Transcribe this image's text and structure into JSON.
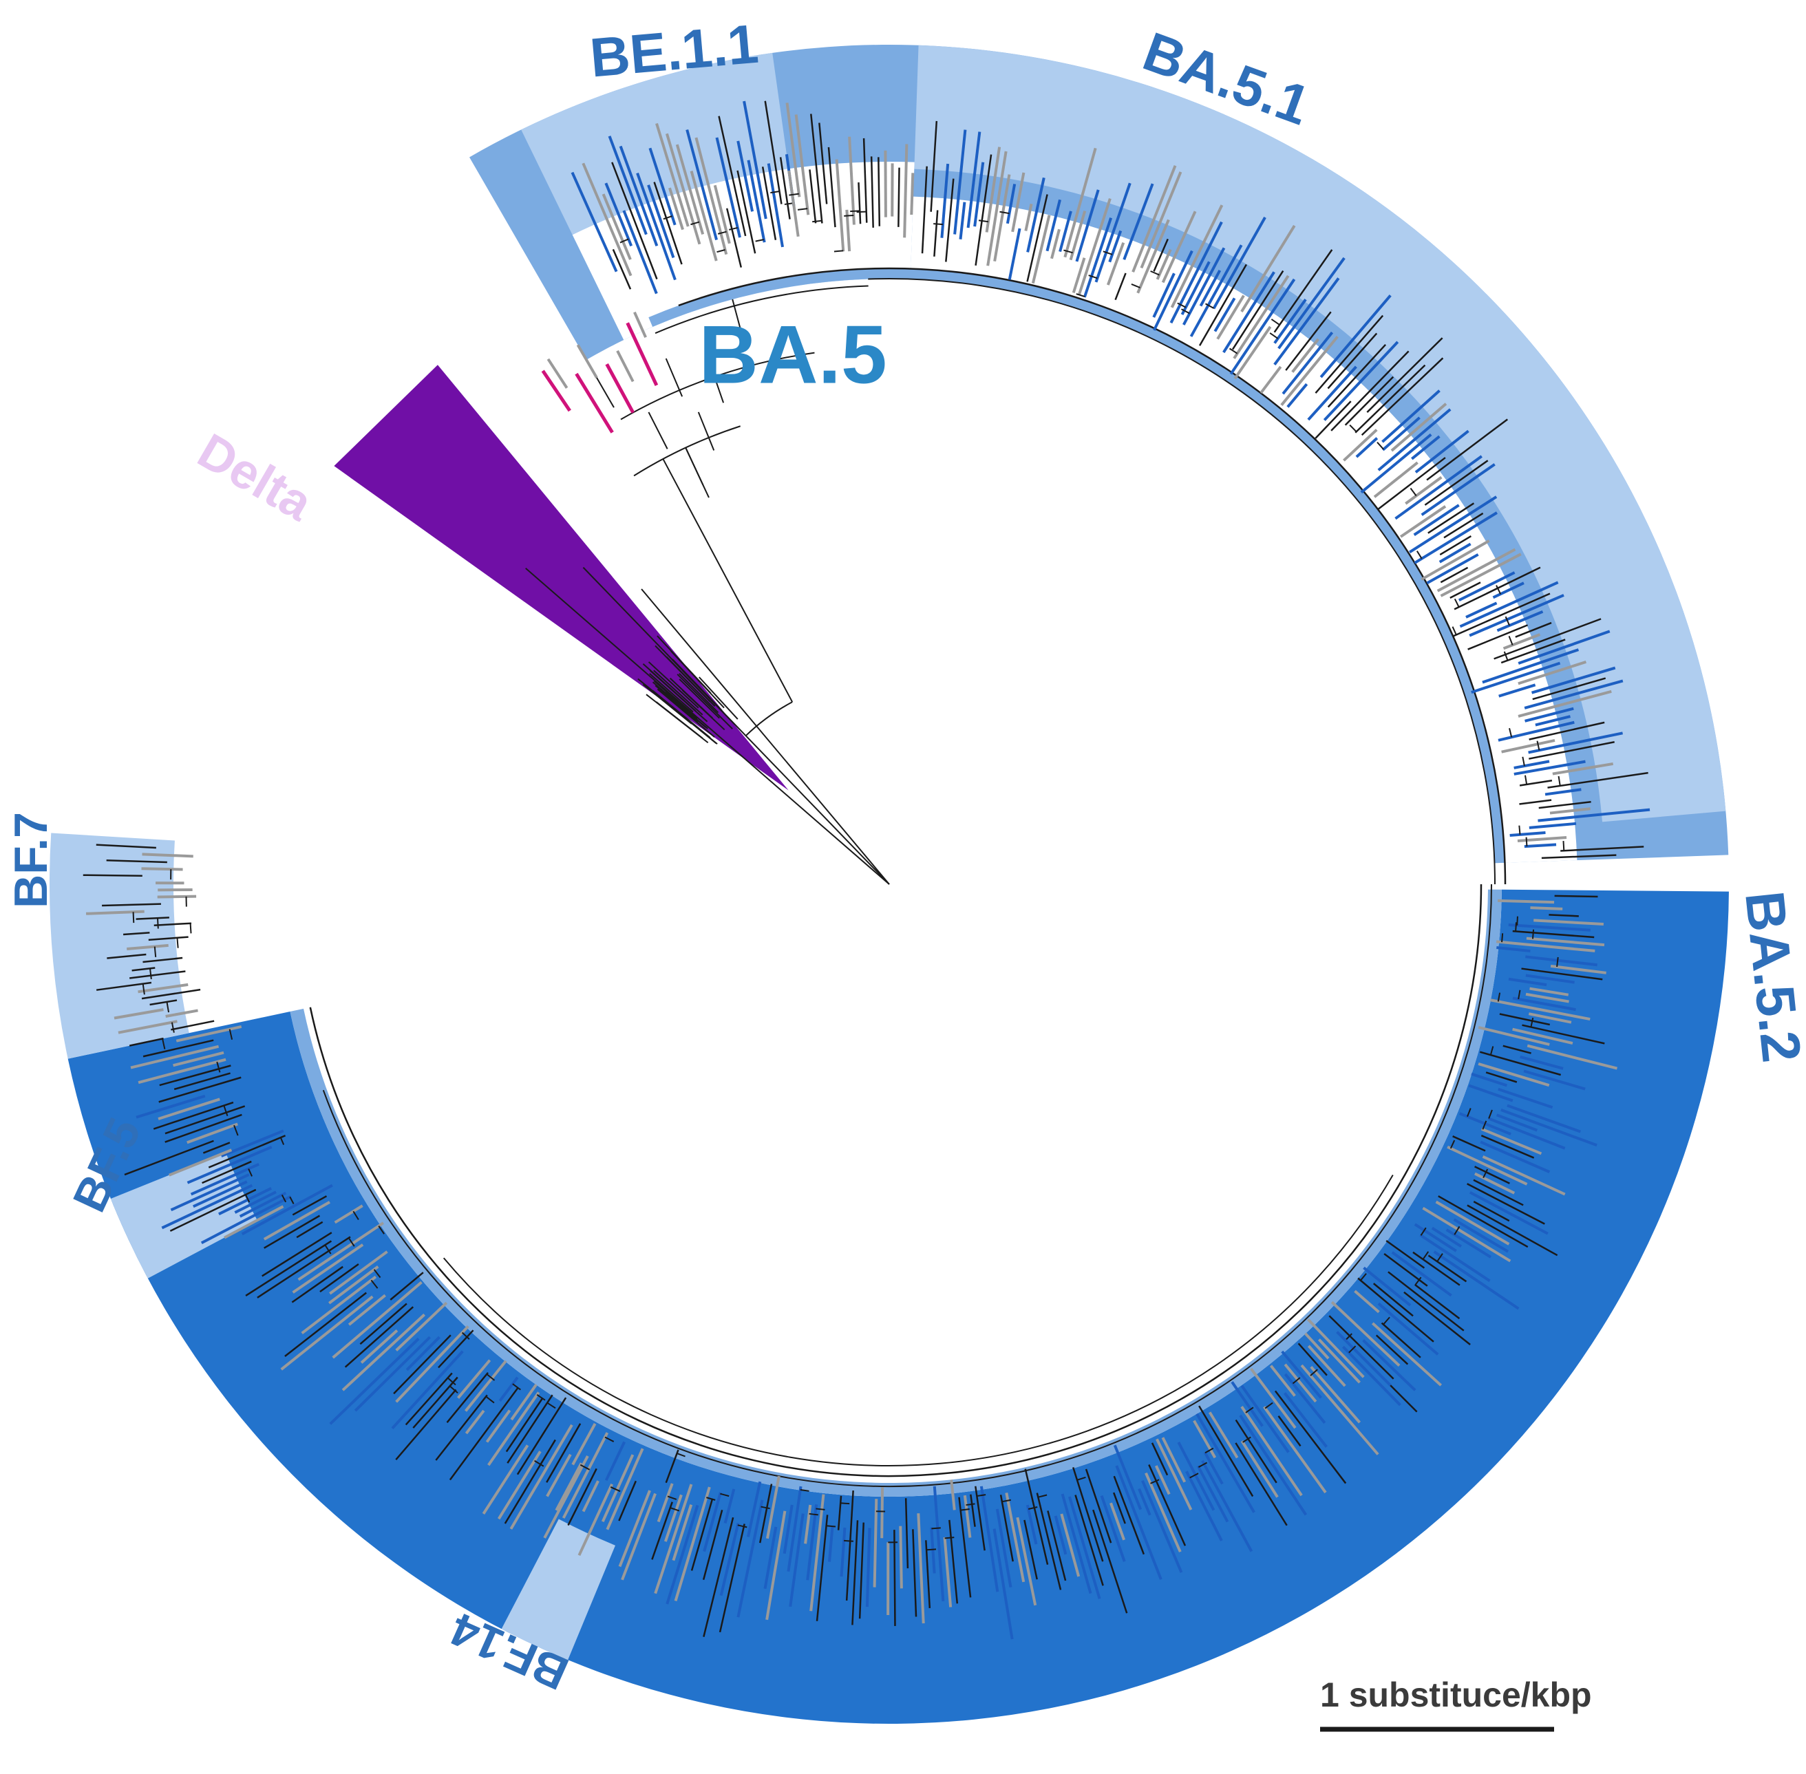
{
  "figure": {
    "type": "circular phylogenetic tree"
  },
  "clades": [
    {
      "id": "be11",
      "label": "BE.1.1",
      "parent": "BA.5"
    },
    {
      "id": "ba51",
      "label": "BA.5.1",
      "parent": "BA.5"
    },
    {
      "id": "ba52",
      "label": "BA.5.2",
      "parent": "BA.5"
    },
    {
      "id": "bf7",
      "label": "BF.7",
      "parent": "BA.5.2"
    },
    {
      "id": "bf5",
      "label": "BF.5",
      "parent": "BA.5.2"
    },
    {
      "id": "bf14",
      "label": "BF.14",
      "parent": "BA.5.2"
    },
    {
      "id": "ba5",
      "label": "BA.5",
      "parent": ""
    },
    {
      "id": "delta",
      "label": "Delta",
      "parent": ""
    }
  ],
  "scale_bar": {
    "label": "1 substituce/kbp"
  },
  "colors": {
    "lightBlue": "#afcdef",
    "midBlue": "#7babe1",
    "darkBlue": "#2373cc",
    "labelBlue": "#2f6fb9",
    "ba5Label": "#2b88c7",
    "delta": "#700fa6",
    "deltaText": "#e8c8f2",
    "grayLeaf": "#9a9a9a",
    "blueLeaf": "#1d5fc2",
    "magentaLeaf": "#d0127a",
    "branch": "#1a1a1a",
    "scaleText": "#3b3b3b"
  }
}
